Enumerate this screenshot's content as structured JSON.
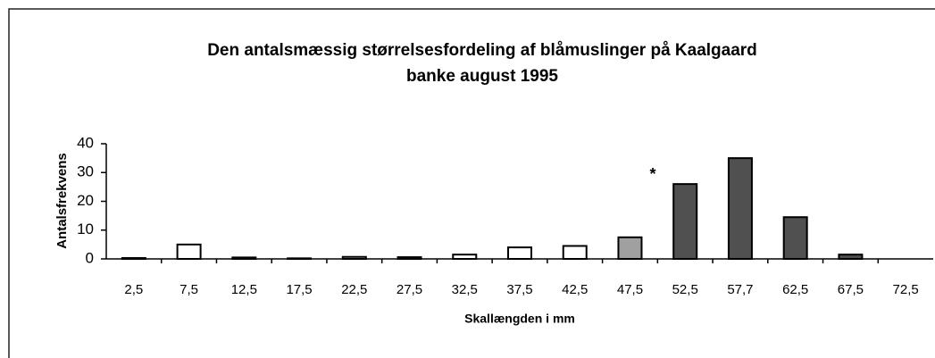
{
  "chart_data": {
    "type": "bar",
    "title": "Den antalsmæssig størrelsesfordeling af blåmuslinger på Kaalgaard",
    "subtitle": "banke august 1995",
    "x_label": "Skallængden i mm",
    "y_label": "Antalsfrekvens",
    "annotation": "*",
    "categories": [
      "2,5",
      "7,5",
      "12,5",
      "17,5",
      "22,5",
      "27,5",
      "32,5",
      "37,5",
      "42,5",
      "47,5",
      "52,5",
      "57,7",
      "62,5",
      "67,5",
      "72,5"
    ],
    "values": [
      0.3,
      5,
      0.5,
      0.2,
      0.7,
      0.6,
      1.5,
      4,
      4.5,
      7.5,
      26,
      35,
      14.5,
      1.5,
      0
    ],
    "colors": [
      "#ffffff",
      "#ffffff",
      "#ffffff",
      "#ffffff",
      "#ffffff",
      "#ffffff",
      "#ffffff",
      "#ffffff",
      "#ffffff",
      "#a0a0a0",
      "#505050",
      "#505050",
      "#505050",
      "#505050",
      "#505050"
    ],
    "ylim": [
      0,
      40
    ],
    "yticks": [
      0,
      10,
      20,
      30,
      40
    ],
    "grid": false
  }
}
